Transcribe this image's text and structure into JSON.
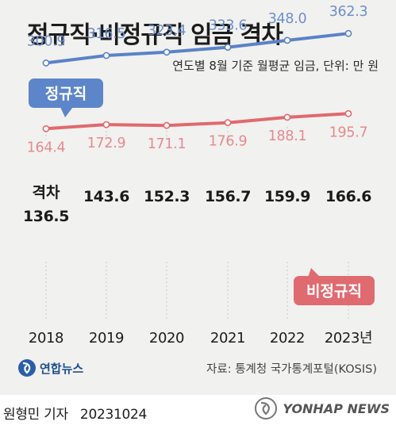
{
  "title": "정규직·비정규직 임금 격차",
  "subtitle": "연도별 8월 기준 월평균 임금, 단위: 만 원",
  "source": "자료: 통계청 국가통계포털(KOSIS)",
  "logo": {
    "text": "연합뉴스"
  },
  "byline": {
    "author": "원형민 기자",
    "date": "20231024"
  },
  "watermark": {
    "text": "YONHAP NEWS"
  },
  "gap_label": "격차",
  "colors": {
    "regular": "#5a82c8",
    "regular_text": "#6d8fcb",
    "irregular": "#e0696f",
    "irregular_text": "#e58a8e",
    "regular_badge": "#5d85c9",
    "irregular_badge": "#df6b71",
    "background": "#f1f1ef"
  },
  "chart_data": {
    "type": "line",
    "categories": [
      "2018",
      "2019",
      "2020",
      "2021",
      "2022",
      "2023년"
    ],
    "series": [
      {
        "name": "정규직",
        "values": [
          300.9,
          316.5,
          323.4,
          333.6,
          348.0,
          362.3
        ],
        "labels": [
          "300.9",
          "316.5",
          "323.4",
          "333.6",
          "348.0",
          "362.3"
        ]
      },
      {
        "name": "비정규직",
        "values": [
          164.4,
          172.9,
          171.1,
          176.9,
          188.1,
          195.7
        ],
        "labels": [
          "164.4",
          "172.9",
          "171.1",
          "176.9",
          "188.1",
          "195.7"
        ]
      }
    ],
    "gap": {
      "values": [
        136.5,
        143.6,
        152.3,
        156.7,
        159.9,
        166.6
      ],
      "labels": [
        "136.5",
        "143.6",
        "152.3",
        "156.7",
        "159.9",
        "166.6"
      ]
    },
    "xlabel": "",
    "ylabel": "",
    "grid": "vertical-dashed"
  }
}
